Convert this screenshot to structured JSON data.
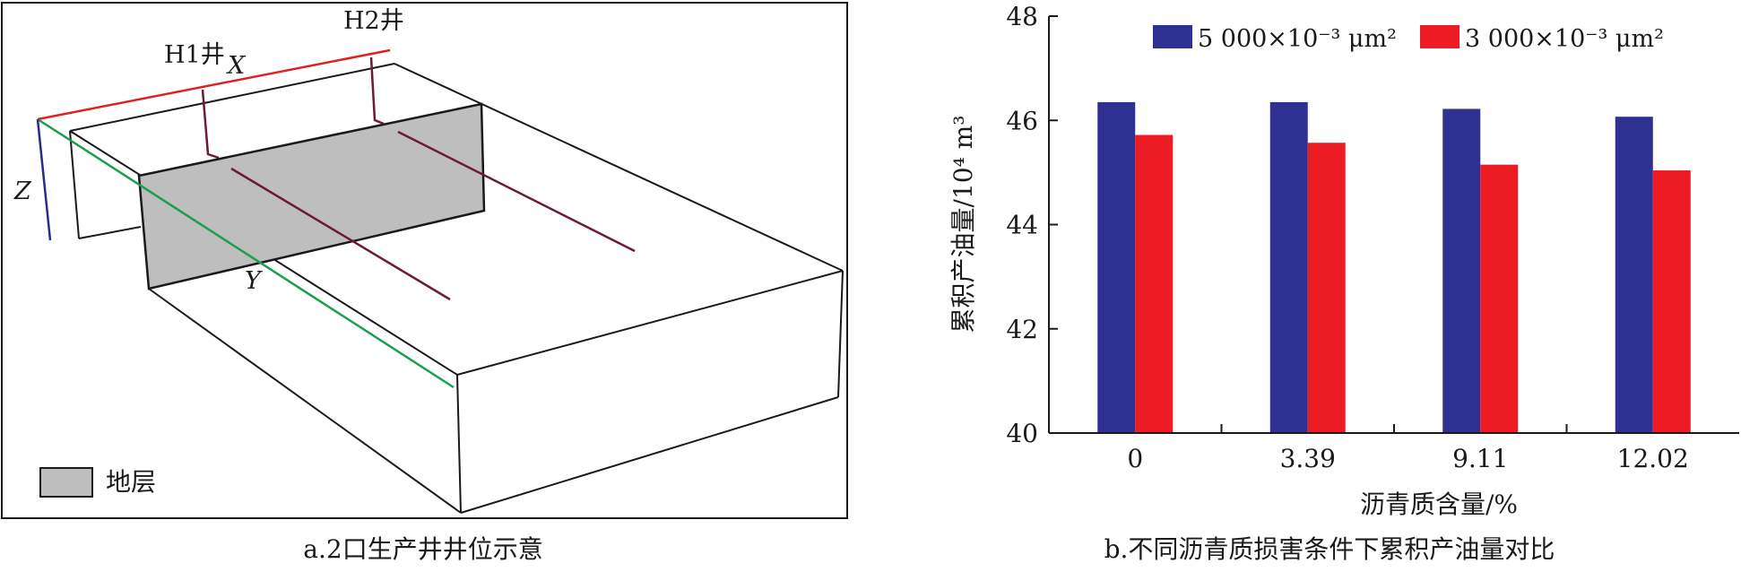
{
  "panel_a": {
    "caption": "a.2口生产井井位示意",
    "labels": {
      "h1": "H1井",
      "h2": "H2井",
      "x": "X",
      "y": "Y",
      "z": "Z"
    },
    "legend_label": "地层",
    "colors": {
      "x_axis": "#e0201e",
      "y_axis": "#1aa04a",
      "z_axis": "#2a2a8c",
      "wells": "#6b1a3a",
      "formation": "#bebebe"
    }
  },
  "panel_b": {
    "caption": "b.不同沥青质损害条件下累积产油量对比"
  },
  "chart_data": {
    "type": "bar",
    "categories": [
      "0",
      "3.39",
      "9.11",
      "12.02"
    ],
    "series": [
      {
        "name": "5 000×10⁻³ μm²",
        "values": [
          46.35,
          46.35,
          46.22,
          46.07
        ],
        "color": "#2e3192"
      },
      {
        "name": "3 000×10⁻³ μm²",
        "values": [
          45.72,
          45.57,
          45.15,
          45.04
        ],
        "color": "#ed1c24"
      }
    ],
    "xlabel": "沥青质含量/%",
    "ylabel": "累积产油量/10⁴ m³",
    "ylim": [
      40,
      48
    ],
    "yticks": [
      "40",
      "42",
      "44",
      "46",
      "48"
    ],
    "legend_position": "top",
    "grid": false
  }
}
